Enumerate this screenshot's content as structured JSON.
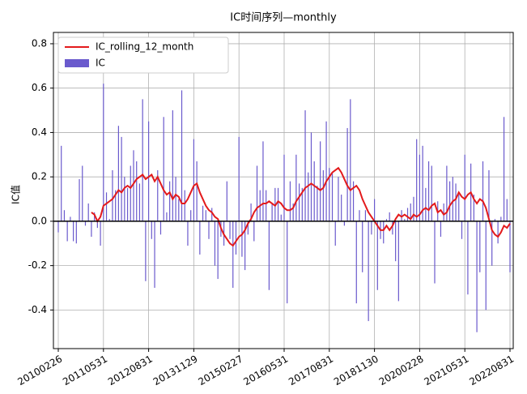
{
  "chart_data": {
    "type": "bar",
    "title": "IC时间序列—monthly",
    "y_label": "IC值",
    "categories": [
      "20100226",
      null,
      null,
      null,
      null,
      null,
      null,
      null,
      null,
      null,
      null,
      null,
      null,
      null,
      null,
      "20110531",
      null,
      null,
      null,
      null,
      null,
      null,
      null,
      null,
      null,
      null,
      null,
      null,
      null,
      null,
      "20120831",
      null,
      null,
      null,
      null,
      null,
      null,
      null,
      null,
      null,
      null,
      null,
      null,
      null,
      null,
      "20131129",
      null,
      null,
      null,
      null,
      null,
      null,
      null,
      null,
      null,
      null,
      null,
      null,
      null,
      null,
      "20150227",
      null,
      null,
      null,
      null,
      null,
      null,
      null,
      null,
      null,
      null,
      null,
      null,
      null,
      null,
      "20160531",
      null,
      null,
      null,
      null,
      null,
      null,
      null,
      null,
      null,
      null,
      null,
      null,
      null,
      null,
      "20170831",
      null,
      null,
      null,
      null,
      null,
      null,
      null,
      null,
      null,
      null,
      null,
      null,
      null,
      null,
      "20181130",
      null,
      null,
      null,
      null,
      null,
      null,
      null,
      null,
      null,
      null,
      null,
      null,
      null,
      null,
      "20200228",
      null,
      null,
      null,
      null,
      null,
      null,
      null,
      null,
      null,
      null,
      null,
      null,
      null,
      null,
      "20210531",
      null,
      null,
      null,
      null,
      null,
      null,
      null,
      null,
      null,
      null,
      null,
      null,
      null,
      null,
      "20220831"
    ],
    "series": [
      {
        "name": "IC_rolling_12_month",
        "type": "line",
        "color": "#e31a1c",
        "values": [
          null,
          null,
          null,
          null,
          null,
          null,
          null,
          null,
          null,
          null,
          null,
          0.04,
          0.03,
          0.0,
          0.02,
          0.07,
          0.08,
          0.09,
          0.1,
          0.12,
          0.14,
          0.13,
          0.15,
          0.16,
          0.15,
          0.17,
          0.19,
          0.2,
          0.21,
          0.19,
          0.2,
          0.21,
          0.18,
          0.2,
          0.17,
          0.14,
          0.12,
          0.13,
          0.1,
          0.12,
          0.11,
          0.08,
          0.08,
          0.1,
          0.13,
          0.16,
          0.17,
          0.13,
          0.1,
          0.07,
          0.05,
          0.04,
          0.02,
          0.01,
          -0.03,
          -0.06,
          -0.08,
          -0.1,
          -0.11,
          -0.09,
          -0.07,
          -0.06,
          -0.04,
          -0.01,
          0.01,
          0.04,
          0.06,
          0.07,
          0.08,
          0.08,
          0.09,
          0.08,
          0.07,
          0.09,
          0.08,
          0.06,
          0.05,
          0.05,
          0.06,
          0.09,
          0.11,
          0.13,
          0.15,
          0.16,
          0.17,
          0.16,
          0.15,
          0.14,
          0.15,
          0.18,
          0.2,
          0.22,
          0.23,
          0.24,
          0.22,
          0.19,
          0.16,
          0.14,
          0.15,
          0.16,
          0.14,
          0.1,
          0.07,
          0.04,
          0.02,
          0.0,
          -0.02,
          -0.04,
          -0.04,
          -0.02,
          -0.04,
          -0.02,
          0.01,
          0.03,
          0.02,
          0.03,
          0.02,
          0.01,
          0.03,
          0.02,
          0.03,
          0.05,
          0.06,
          0.05,
          0.07,
          0.08,
          0.04,
          0.05,
          0.03,
          0.04,
          0.07,
          0.09,
          0.1,
          0.13,
          0.11,
          0.1,
          0.12,
          0.13,
          0.1,
          0.08,
          0.1,
          0.09,
          0.06,
          0.01,
          -0.04,
          -0.06,
          -0.07,
          -0.05,
          -0.02,
          -0.03,
          -0.01
        ]
      },
      {
        "name": "IC",
        "type": "bar",
        "color": "#6a5acd",
        "values": [
          -0.05,
          0.34,
          0.05,
          -0.09,
          0.02,
          -0.09,
          -0.1,
          0.19,
          0.25,
          -0.02,
          0.08,
          -0.07,
          0.04,
          -0.03,
          -0.11,
          0.62,
          0.13,
          0.01,
          0.23,
          0.14,
          0.43,
          0.38,
          0.2,
          0.15,
          0.25,
          0.32,
          0.27,
          0.17,
          0.55,
          -0.27,
          0.45,
          -0.08,
          -0.3,
          0.23,
          -0.06,
          0.47,
          0.04,
          0.18,
          0.5,
          0.2,
          0.1,
          0.59,
          0.14,
          -0.11,
          0.05,
          0.37,
          0.27,
          -0.15,
          0.07,
          0.05,
          -0.08,
          0.06,
          -0.2,
          -0.26,
          -0.07,
          -0.11,
          0.18,
          -0.08,
          -0.3,
          -0.15,
          0.38,
          -0.16,
          -0.22,
          -0.06,
          0.08,
          -0.09,
          0.25,
          0.14,
          0.36,
          0.14,
          -0.31,
          0.08,
          0.15,
          0.15,
          0.03,
          0.3,
          -0.37,
          0.18,
          0.08,
          0.3,
          0.17,
          0.15,
          0.5,
          0.22,
          0.4,
          0.27,
          0.16,
          0.36,
          0.23,
          0.45,
          0.24,
          0.22,
          -0.11,
          0.2,
          0.12,
          -0.02,
          0.42,
          0.55,
          0.18,
          -0.37,
          0.05,
          -0.23,
          0.05,
          -0.45,
          -0.06,
          0.1,
          -0.31,
          -0.08,
          -0.1,
          0.01,
          0.04,
          -0.06,
          -0.18,
          -0.36,
          0.05,
          0.01,
          0.06,
          0.08,
          0.11,
          0.37,
          0.3,
          0.34,
          0.15,
          0.27,
          0.25,
          -0.28,
          0.09,
          -0.07,
          0.08,
          0.25,
          0.18,
          0.2,
          0.17,
          0.12,
          -0.08,
          0.3,
          -0.33,
          0.26,
          0.12,
          -0.5,
          -0.23,
          0.27,
          -0.4,
          0.23,
          -0.2,
          0.01,
          -0.1,
          0.02,
          0.47,
          0.1,
          -0.23
        ]
      }
    ],
    "ylim": [
      -0.574,
      0.851
    ],
    "yticks": [
      -0.4,
      -0.2,
      {
        "value": 0,
        "label": "0.0"
      },
      0.2,
      0.4,
      0.6,
      0.8
    ],
    "grid": true,
    "legend": "upper left"
  }
}
